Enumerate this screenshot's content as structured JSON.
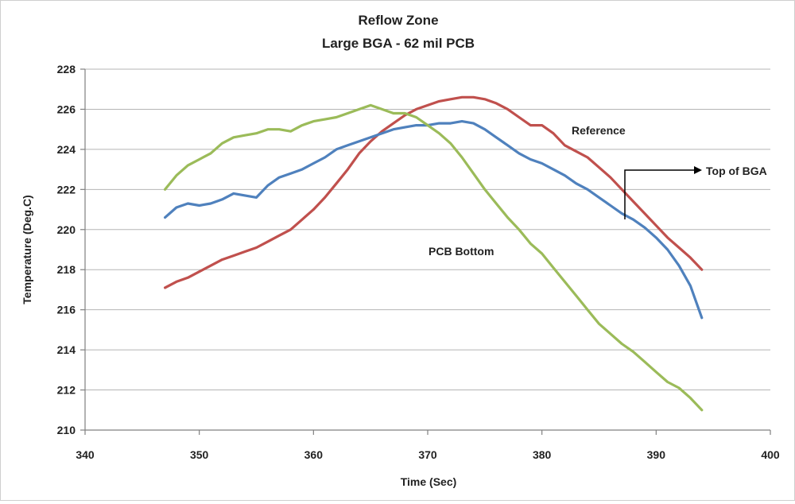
{
  "chart_data": {
    "type": "line",
    "title": "Reflow Zone",
    "subtitle": "Large BGA - 62 mil PCB",
    "xlabel": "Time (Sec)",
    "ylabel": "Temperature (Deg.C)",
    "xlim": [
      340,
      400
    ],
    "ylim": [
      210,
      228
    ],
    "x_ticks": [
      340,
      350,
      360,
      370,
      380,
      390,
      400
    ],
    "y_ticks": [
      210,
      212,
      214,
      216,
      218,
      220,
      222,
      224,
      226,
      228
    ],
    "grid": "horizontal",
    "legend": "none",
    "series": [
      {
        "name": "Reference",
        "color": "#c0504d",
        "x": [
          347,
          348,
          349,
          350,
          351,
          352,
          353,
          354,
          355,
          356,
          357,
          358,
          359,
          360,
          361,
          362,
          363,
          364,
          365,
          366,
          367,
          368,
          369,
          370,
          371,
          372,
          373,
          374,
          375,
          376,
          377,
          378,
          379,
          380,
          381,
          382,
          383,
          384,
          385,
          386,
          387,
          388,
          389,
          390,
          391,
          392,
          393,
          394
        ],
        "y": [
          217.1,
          217.4,
          217.6,
          217.9,
          218.2,
          218.5,
          218.7,
          218.9,
          219.1,
          219.4,
          219.7,
          220.0,
          220.5,
          221.0,
          221.6,
          222.3,
          223.0,
          223.8,
          224.4,
          224.9,
          225.3,
          225.7,
          226.0,
          226.2,
          226.4,
          226.5,
          226.6,
          226.6,
          226.5,
          226.3,
          226.0,
          225.6,
          225.2,
          225.2,
          224.8,
          224.2,
          223.9,
          223.6,
          223.1,
          222.6,
          222.0,
          221.4,
          220.8,
          220.2,
          219.6,
          219.1,
          218.6,
          218.0
        ]
      },
      {
        "name": "Top of BGA",
        "color": "#4f81bd",
        "x": [
          347,
          348,
          349,
          350,
          351,
          352,
          353,
          354,
          355,
          356,
          357,
          358,
          359,
          360,
          361,
          362,
          363,
          364,
          365,
          366,
          367,
          368,
          369,
          370,
          371,
          372,
          373,
          374,
          375,
          376,
          377,
          378,
          379,
          380,
          381,
          382,
          383,
          384,
          385,
          386,
          387,
          388,
          389,
          390,
          391,
          392,
          393,
          394
        ],
        "y": [
          220.6,
          221.1,
          221.3,
          221.2,
          221.3,
          221.5,
          221.8,
          221.7,
          221.6,
          222.2,
          222.6,
          222.8,
          223.0,
          223.3,
          223.6,
          224.0,
          224.2,
          224.4,
          224.6,
          224.8,
          225.0,
          225.1,
          225.2,
          225.2,
          225.3,
          225.3,
          225.4,
          225.3,
          225.0,
          224.6,
          224.2,
          223.8,
          223.5,
          223.3,
          223.0,
          222.7,
          222.3,
          222.0,
          221.6,
          221.2,
          220.8,
          220.5,
          220.1,
          219.6,
          219.0,
          218.2,
          217.2,
          215.6
        ]
      },
      {
        "name": "PCB Bottom",
        "color": "#9bbb59",
        "x": [
          347,
          348,
          349,
          350,
          351,
          352,
          353,
          354,
          355,
          356,
          357,
          358,
          359,
          360,
          361,
          362,
          363,
          364,
          365,
          366,
          367,
          368,
          369,
          370,
          371,
          372,
          373,
          374,
          375,
          376,
          377,
          378,
          379,
          380,
          381,
          382,
          383,
          384,
          385,
          386,
          387,
          388,
          389,
          390,
          391,
          392,
          393,
          394
        ],
        "y": [
          222.0,
          222.7,
          223.2,
          223.5,
          223.8,
          224.3,
          224.6,
          224.7,
          224.8,
          225.0,
          225.0,
          224.9,
          225.2,
          225.4,
          225.5,
          225.6,
          225.8,
          226.0,
          226.2,
          226.0,
          225.8,
          225.8,
          225.6,
          225.2,
          224.8,
          224.3,
          223.6,
          222.8,
          222.0,
          221.3,
          220.6,
          220.0,
          219.3,
          218.8,
          218.1,
          217.4,
          216.7,
          216.0,
          215.3,
          214.8,
          214.3,
          213.9,
          213.4,
          212.9,
          212.4,
          212.1,
          211.6,
          211.0
        ]
      }
    ],
    "annotations": {
      "reference": "Reference",
      "top_of_bga": "Top of BGA",
      "pcb_bottom": "PCB Bottom"
    }
  }
}
